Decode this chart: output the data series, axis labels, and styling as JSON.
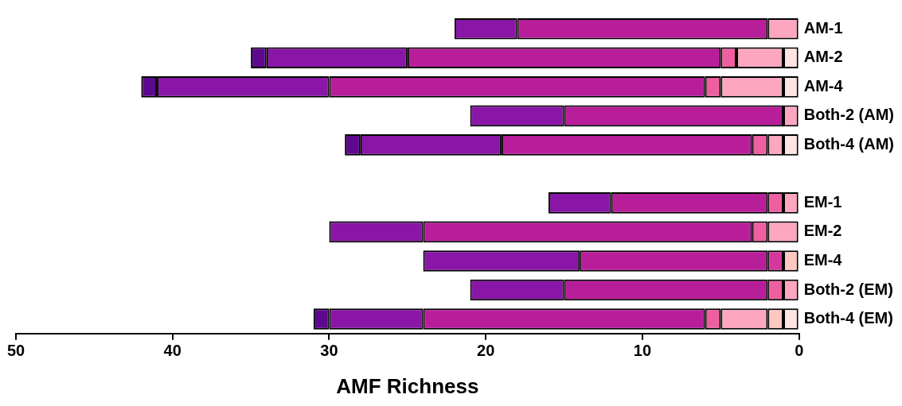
{
  "chart_data": {
    "type": "bar",
    "orientation": "horizontal",
    "stacked": true,
    "xlabel": "AMF Richness",
    "xlim": [
      50,
      0
    ],
    "xticks": [
      50,
      40,
      30,
      20,
      10,
      0
    ],
    "categories": [
      "AM-1",
      "AM-2",
      "AM-4",
      "Both-2 (AM)",
      "Both-4 (AM)",
      null,
      "EM-1",
      "EM-2",
      "EM-4",
      "Both-2 (EM)",
      "Both-4 (EM)"
    ],
    "series": [
      {
        "color": "#ffe4e4",
        "values": [
          null,
          1,
          1,
          null,
          1,
          null,
          null,
          null,
          null,
          null,
          1
        ]
      },
      {
        "color": "#ffc8c0",
        "values": [
          null,
          null,
          null,
          null,
          null,
          null,
          null,
          null,
          1,
          null,
          1
        ]
      },
      {
        "color": "#fca6c0",
        "values": [
          2,
          3,
          4,
          1,
          1,
          null,
          1,
          2,
          null,
          1,
          3
        ]
      },
      {
        "color": "#ee5fa0",
        "values": [
          null,
          1,
          1,
          null,
          1,
          null,
          1,
          1,
          null,
          1,
          1
        ]
      },
      {
        "color": "#d4389c",
        "values": [
          null,
          null,
          null,
          null,
          null,
          null,
          null,
          null,
          1,
          null,
          null
        ]
      },
      {
        "color": "#b81e9a",
        "values": [
          16,
          20,
          24,
          14,
          16,
          null,
          10,
          21,
          12,
          13,
          18
        ]
      },
      {
        "color": "#8a16a8",
        "values": [
          4,
          9,
          11,
          6,
          9,
          null,
          4,
          6,
          10,
          6,
          6
        ]
      },
      {
        "color": "#5e0890",
        "values": [
          null,
          1,
          1,
          null,
          1,
          null,
          null,
          null,
          null,
          null,
          1
        ]
      }
    ]
  }
}
